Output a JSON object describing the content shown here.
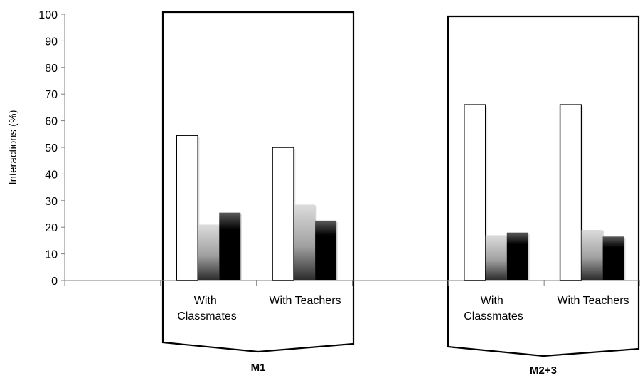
{
  "chart_data": {
    "type": "bar",
    "ylabel": "Interactions (%)",
    "ylim": [
      0,
      100
    ],
    "yticks": [
      0,
      10,
      20,
      30,
      40,
      50,
      60,
      70,
      80,
      90,
      100
    ],
    "grid": false,
    "legend": "none",
    "groups": [
      {
        "label": "M1",
        "categories": [
          {
            "label_lines": [
              "With",
              "Classmates"
            ],
            "values": [
              54.5,
              21,
              25.5
            ]
          },
          {
            "label_lines": [
              "With Teachers"
            ],
            "values": [
              50,
              28.5,
              22.5
            ]
          }
        ]
      },
      {
        "label": "M2+3",
        "categories": [
          {
            "label_lines": [
              "With",
              "Classmates"
            ],
            "values": [
              66,
              17,
              18
            ]
          },
          {
            "label_lines": [
              "With Teachers"
            ],
            "values": [
              66,
              19,
              16.5
            ]
          }
        ]
      }
    ],
    "series_colors": [
      "#ffffff",
      "gradient-gray",
      "gradient-black"
    ]
  }
}
